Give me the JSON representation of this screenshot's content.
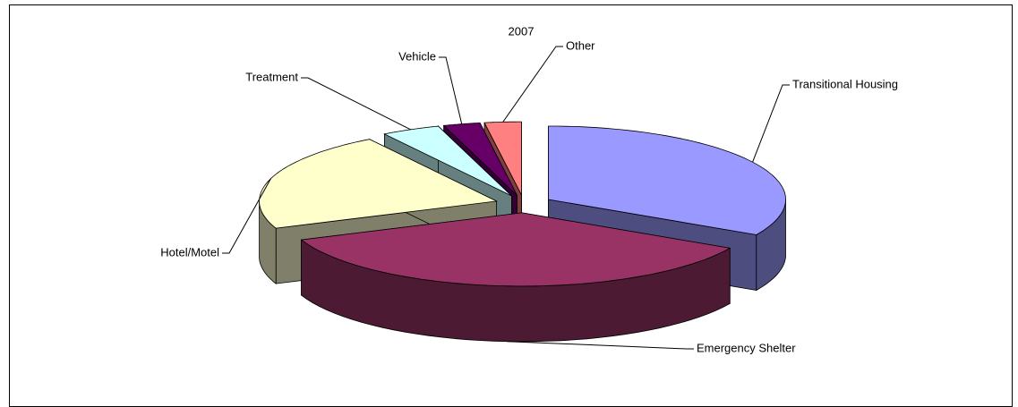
{
  "chart_data": {
    "type": "pie",
    "title": "2007",
    "categories": [
      "Transitional Housing",
      "Emergency Shelter",
      "Hotel/Motel",
      "Treatment",
      "Vehicle",
      "Other"
    ],
    "values": [
      33,
      36,
      22,
      4,
      2.5,
      2.5
    ],
    "colors": [
      "#9999ff",
      "#993366",
      "#ffffcc",
      "#ccffff",
      "#660066",
      "#ff8080"
    ],
    "side_colors": [
      "#4d4d80",
      "#4d1a33",
      "#80806a",
      "#668080",
      "#330033",
      "#804040"
    ]
  }
}
